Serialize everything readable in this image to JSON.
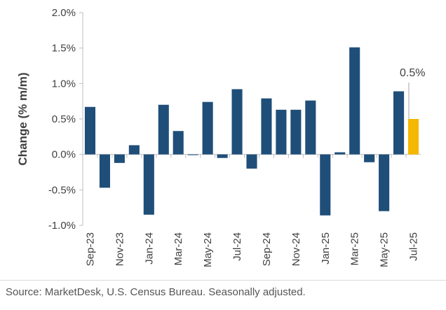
{
  "chart_data": {
    "type": "bar",
    "title": "",
    "xlabel": "",
    "ylabel": "Change (% m/m)",
    "ylim": [
      -1.0,
      2.0
    ],
    "yticks": [
      -1.0,
      -0.5,
      0.0,
      0.5,
      1.0,
      1.5,
      2.0
    ],
    "ytick_labels": [
      "-1.0%",
      "-0.5%",
      "0.0%",
      "0.5%",
      "1.0%",
      "1.5%",
      "2.0%"
    ],
    "categories": [
      "Sep-23",
      "Oct-23",
      "Nov-23",
      "Dec-23",
      "Jan-24",
      "Feb-24",
      "Mar-24",
      "Apr-24",
      "May-24",
      "Jun-24",
      "Jul-24",
      "Aug-24",
      "Sep-24",
      "Oct-24",
      "Nov-24",
      "Dec-24",
      "Jan-25",
      "Feb-25",
      "Mar-25",
      "Apr-25",
      "May-25",
      "Jun-25",
      "Jul-25"
    ],
    "tick_labels": [
      "Sep-23",
      "",
      "Nov-23",
      "",
      "Jan-24",
      "",
      "Mar-24",
      "",
      "May-24",
      "",
      "Jul-24",
      "",
      "Sep-24",
      "",
      "Nov-24",
      "",
      "Jan-25",
      "",
      "Mar-25",
      "",
      "May-25",
      "",
      "Jul-25"
    ],
    "values": [
      0.67,
      -0.47,
      -0.12,
      0.13,
      -0.85,
      0.7,
      0.33,
      -0.01,
      0.74,
      -0.05,
      0.92,
      -0.2,
      0.79,
      0.63,
      0.63,
      0.76,
      -0.86,
      0.03,
      1.51,
      -0.11,
      -0.8,
      0.89,
      0.5
    ],
    "highlight_index": 22,
    "annotation": "0.5%",
    "grid": false,
    "colors": {
      "bar": "#1f4e79",
      "highlight": "#f5b800",
      "axis": "#bfbfbf",
      "text": "#404040",
      "leader": "#a6a6a6"
    }
  },
  "source": "Source: MarketDesk, U.S. Census Bureau. Seasonally adjusted."
}
